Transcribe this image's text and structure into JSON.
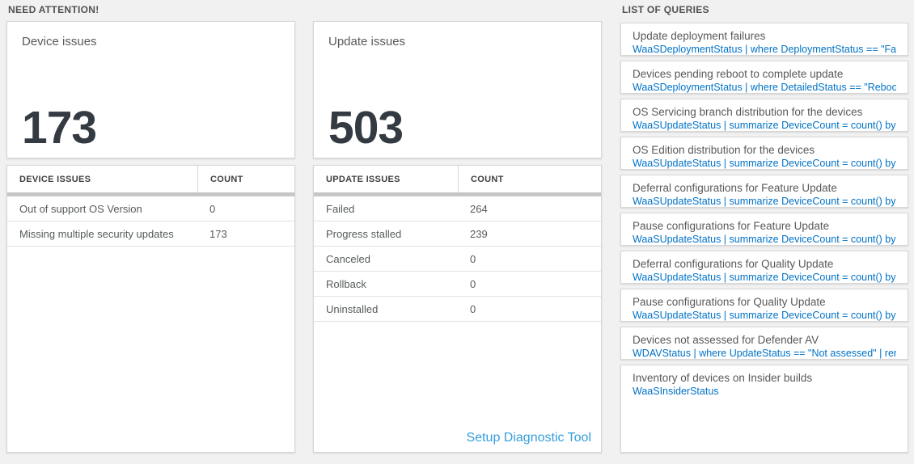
{
  "sections": {
    "need_attention": "NEED ATTENTION!",
    "list_of_queries": "LIST OF QUERIES"
  },
  "cards": {
    "device": {
      "title": "Device issues",
      "count": "173",
      "table": {
        "headers": [
          "DEVICE ISSUES",
          "COUNT"
        ],
        "rows": [
          {
            "label": "Out of support OS Version",
            "count": "0"
          },
          {
            "label": "Missing multiple security updates",
            "count": "173"
          }
        ]
      }
    },
    "update": {
      "title": "Update issues",
      "count": "503",
      "table": {
        "headers": [
          "UPDATE ISSUES",
          "COUNT"
        ],
        "rows": [
          {
            "label": "Failed",
            "count": "264"
          },
          {
            "label": "Progress stalled",
            "count": "239"
          },
          {
            "label": "Canceled",
            "count": "0"
          },
          {
            "label": "Rollback",
            "count": "0"
          },
          {
            "label": "Uninstalled",
            "count": "0"
          }
        ]
      },
      "footer_link": "Setup Diagnostic Tool"
    }
  },
  "queries": {
    "items": [
      {
        "title": "Update deployment failures",
        "query": "WaaSDeploymentStatus | where DeploymentStatus == \"Failed\" |..."
      },
      {
        "title": "Devices pending reboot to complete update",
        "query": "WaaSDeploymentStatus | where DetailedStatus == \"Reboot pend..."
      },
      {
        "title": "OS Servicing branch distribution for the devices",
        "query": "WaaSUpdateStatus | summarize DeviceCount = count() by OSSer..."
      },
      {
        "title": "OS Edition distribution for the devices",
        "query": "WaaSUpdateStatus | summarize DeviceCount = count() by OSEdit..."
      },
      {
        "title": "Deferral configurations for Feature Update",
        "query": "WaaSUpdateStatus | summarize DeviceCount = count() by Featur..."
      },
      {
        "title": "Pause configurations for Feature Update",
        "query": "WaaSUpdateStatus | summarize DeviceCount = count() by Featur..."
      },
      {
        "title": "Deferral configurations for Quality Update",
        "query": "WaaSUpdateStatus | summarize DeviceCount = count() by Qualit..."
      },
      {
        "title": "Pause configurations for Quality Update",
        "query": "WaaSUpdateStatus | summarize DeviceCount = count() by Qualit..."
      },
      {
        "title": "Devices not assessed for Defender AV",
        "query": "WDAVStatus | where UpdateStatus == \"Not assessed\" | render ta..."
      },
      {
        "title": "Inventory of devices on Insider builds",
        "query": "WaaSInsiderStatus"
      }
    ]
  },
  "colors": {
    "query_blue": "#0072c6",
    "footer_link_blue": "#359ddc",
    "big_number": "#333a42",
    "page_background": "#f1f1f1"
  }
}
